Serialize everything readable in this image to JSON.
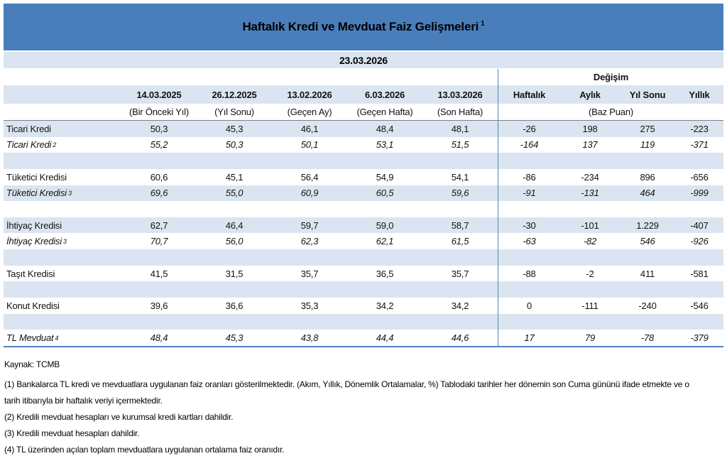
{
  "header": {
    "title": "Haftalık Kredi ve Mevduat Faiz Gelişmeleri",
    "title_superscript": "1",
    "report_date": "23.03.2026"
  },
  "table": {
    "change_group_label": "Değişim",
    "change_sub_label": "(Baz Puan)",
    "columns": [
      {
        "date": "14.03.2025",
        "sub": "(Bir Önceki Yıl)"
      },
      {
        "date": "26.12.2025",
        "sub": "(Yıl Sonu)"
      },
      {
        "date": "13.02.2026",
        "sub": "(Geçen Ay)"
      },
      {
        "date": "6.03.2026",
        "sub": "(Geçen Hafta)"
      },
      {
        "date": "13.03.2026",
        "sub": "(Son Hafta)"
      }
    ],
    "change_columns": [
      "Haftalık",
      "Aylık",
      "Yıl Sonu",
      "Yıllık"
    ],
    "rows": [
      {
        "label": "Ticari Kredi",
        "sup": "",
        "italic": false,
        "values": [
          "50,3",
          "45,3",
          "46,1",
          "48,4",
          "48,1"
        ],
        "changes": [
          "-26",
          "198",
          "275",
          "-223"
        ]
      },
      {
        "label": "Ticari Kredi",
        "sup": "2",
        "italic": true,
        "values": [
          "55,2",
          "50,3",
          "50,1",
          "53,1",
          "51,5"
        ],
        "changes": [
          "-164",
          "137",
          "119",
          "-371"
        ]
      },
      {
        "empty": true
      },
      {
        "label": "Tüketici Kredisi",
        "sup": "",
        "italic": false,
        "values": [
          "60,6",
          "45,1",
          "56,4",
          "54,9",
          "54,1"
        ],
        "changes": [
          "-86",
          "-234",
          "896",
          "-656"
        ]
      },
      {
        "label": "Tüketici Kredisi",
        "sup": "3",
        "italic": true,
        "values": [
          "69,6",
          "55,0",
          "60,9",
          "60,5",
          "59,6"
        ],
        "changes": [
          "-91",
          "-131",
          "464",
          "-999"
        ]
      },
      {
        "empty": true
      },
      {
        "label": "İhtiyaç Kredisi",
        "sup": "",
        "italic": false,
        "values": [
          "62,7",
          "46,4",
          "59,7",
          "59,0",
          "58,7"
        ],
        "changes": [
          "-30",
          "-101",
          "1.229",
          "-407"
        ]
      },
      {
        "label": "İhtiyaç Kredisi",
        "sup": "3",
        "italic": true,
        "values": [
          "70,7",
          "56,0",
          "62,3",
          "62,1",
          "61,5"
        ],
        "changes": [
          "-63",
          "-82",
          "546",
          "-926"
        ]
      },
      {
        "empty": true
      },
      {
        "label": "Taşıt Kredisi",
        "sup": "",
        "italic": false,
        "values": [
          "41,5",
          "31,5",
          "35,7",
          "36,5",
          "35,7"
        ],
        "changes": [
          "-88",
          "-2",
          "411",
          "-581"
        ]
      },
      {
        "empty": true
      },
      {
        "label": "Konut Kredisi",
        "sup": "",
        "italic": false,
        "values": [
          "39,6",
          "36,6",
          "35,3",
          "34,2",
          "34,2"
        ],
        "changes": [
          "0",
          "-111",
          "-240",
          "-546"
        ]
      },
      {
        "empty": true
      },
      {
        "label": "TL Mevduat",
        "sup": "4",
        "italic": true,
        "values": [
          "48,4",
          "45,3",
          "43,8",
          "44,4",
          "44,6"
        ],
        "changes": [
          "17",
          "79",
          "-78",
          "-379"
        ]
      }
    ]
  },
  "footer": {
    "source": "Kaynak: TCMB",
    "notes": [
      "(1) Bankalarca TL kredi ve mevduatlara uygulanan faiz oranları gösterilmektedir. (Akım, Yıllık, Dönemlik Ortalamalar, %) Tablodaki tarihler her dönemin son Cuma gününü ifade etmekte ve o tarih itibarıyla bir haftalık veriyi içermektedir.",
      "(2) Kredili mevduat hesapları ve kurumsal kredi kartları dahildir.",
      "(3) Kredili mevduat hesapları dahildir.",
      "(4) TL üzerinden açılan toplam mevduatlara uygulanan ortalama faiz oranıdır."
    ]
  },
  "colors": {
    "header_blue": "#4A7EBB",
    "band_light_blue": "#DBE5F1",
    "rule_blue": "#4F81BD"
  }
}
